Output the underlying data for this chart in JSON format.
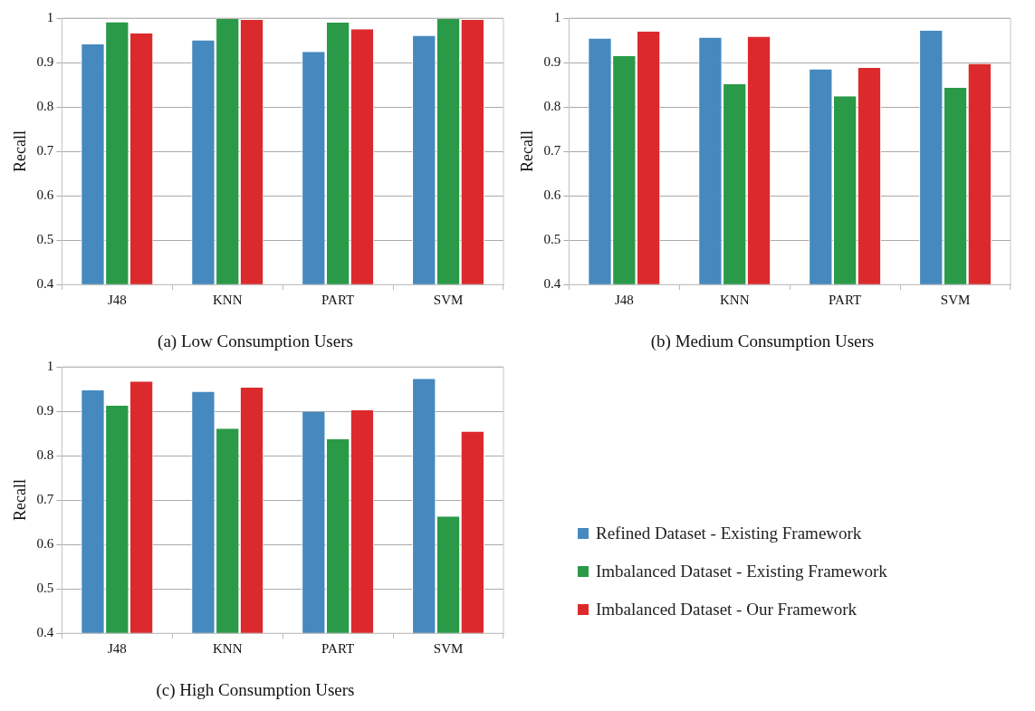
{
  "chart_data": [
    {
      "type": "bar",
      "title": "(a) Low Consumption Users",
      "ylabel": "Recall",
      "categories": [
        "J48",
        "KNN",
        "PART",
        "SVM"
      ],
      "ylim": [
        0.4,
        1
      ],
      "yticks": [
        0.4,
        0.5,
        0.6,
        0.7,
        0.8,
        0.9,
        1
      ],
      "grid": "y",
      "series": [
        {
          "color": "#4589be",
          "values": [
            0.941,
            0.95,
            0.924,
            0.96
          ]
        },
        {
          "color": "#2a9a48",
          "values": [
            0.991,
            0.998,
            0.99,
            0.998
          ]
        },
        {
          "color": "#dc2a2c",
          "values": [
            0.966,
            0.996,
            0.975,
            0.996
          ]
        }
      ]
    },
    {
      "type": "bar",
      "title": "(b) Medium Consumption Users",
      "ylabel": "Recall",
      "categories": [
        "J48",
        "KNN",
        "PART",
        "SVM"
      ],
      "ylim": [
        0.4,
        1
      ],
      "yticks": [
        0.4,
        0.5,
        0.6,
        0.7,
        0.8,
        0.9,
        1
      ],
      "grid": "y",
      "series": [
        {
          "color": "#4589be",
          "values": [
            0.954,
            0.956,
            0.885,
            0.972
          ]
        },
        {
          "color": "#2a9a48",
          "values": [
            0.915,
            0.851,
            0.824,
            0.843
          ]
        },
        {
          "color": "#dc2a2c",
          "values": [
            0.97,
            0.958,
            0.888,
            0.897
          ]
        }
      ]
    },
    {
      "type": "bar",
      "title": "(c) High Consumption Users",
      "ylabel": "Recall",
      "categories": [
        "J48",
        "KNN",
        "PART",
        "SVM"
      ],
      "ylim": [
        0.4,
        1
      ],
      "yticks": [
        0.4,
        0.5,
        0.6,
        0.7,
        0.8,
        0.9,
        1
      ],
      "grid": "y",
      "legend": "right",
      "series": [
        {
          "name": "Refined Dataset - Existing Framework",
          "color": "#4589be",
          "values": [
            0.947,
            0.944,
            0.899,
            0.973
          ]
        },
        {
          "name": "Imbalanced Dataset - Existing Framework",
          "color": "#2a9a48",
          "values": [
            0.913,
            0.861,
            0.837,
            0.663
          ]
        },
        {
          "name": "Imbalanced Dataset - Our Framework",
          "color": "#dc2a2c",
          "values": [
            0.967,
            0.953,
            0.902,
            0.854
          ]
        }
      ]
    }
  ]
}
